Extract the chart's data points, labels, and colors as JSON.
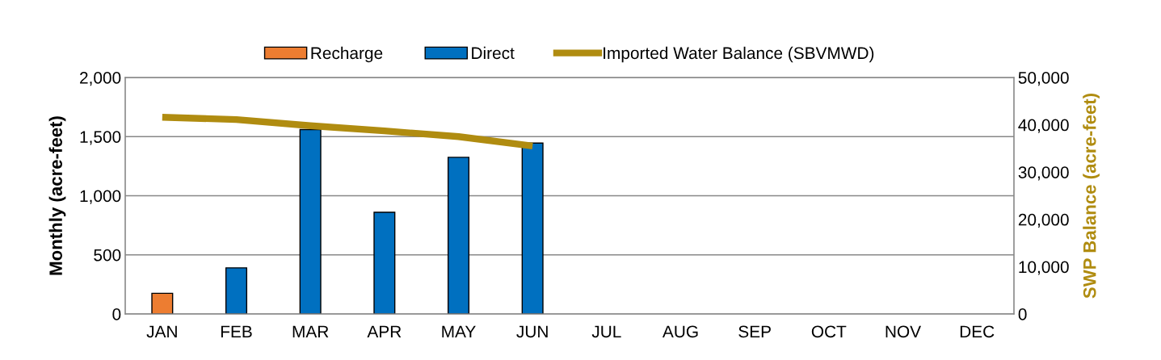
{
  "chart_data": {
    "type": "bar",
    "stacked": true,
    "ylabel": "Monthly (acre-feet)",
    "y2label": "SWP Balance (acre-feet)",
    "categories": [
      "JAN",
      "FEB",
      "MAR",
      "APR",
      "MAY",
      "JUN",
      "JUL",
      "AUG",
      "SEP",
      "OCT",
      "NOV",
      "DEC"
    ],
    "series": [
      {
        "name": "Recharge",
        "color": "#ed7d31",
        "values": [
          175,
          null,
          null,
          null,
          null,
          null,
          null,
          null,
          null,
          null,
          null,
          null
        ]
      },
      {
        "name": "Direct",
        "color": "#0070c0",
        "values": [
          null,
          390,
          1560,
          860,
          1325,
          1445,
          null,
          null,
          null,
          null,
          null,
          null
        ]
      },
      {
        "name": "Imported Water Balance (SBVMWD)",
        "type": "line",
        "axis": "y2",
        "color": "#b08c10",
        "values": [
          41600,
          41100,
          39800,
          38700,
          37500,
          35500,
          null,
          null,
          null,
          null,
          null,
          null
        ]
      }
    ],
    "ylim": [
      0,
      2000
    ],
    "yticks": [
      {
        "value": 0,
        "label": "0"
      },
      {
        "value": 500,
        "label": "500"
      },
      {
        "value": 1000,
        "label": "1,000"
      },
      {
        "value": 1500,
        "label": "1,500"
      },
      {
        "value": 2000,
        "label": "2,000"
      }
    ],
    "y2lim": [
      0,
      50000
    ],
    "y2ticks": [
      {
        "value": 0,
        "label": "0"
      },
      {
        "value": 10000,
        "label": "10,000"
      },
      {
        "value": 20000,
        "label": "20,000"
      },
      {
        "value": 30000,
        "label": "30,000"
      },
      {
        "value": 40000,
        "label": "40,000"
      },
      {
        "value": 50000,
        "label": "50,000"
      }
    ],
    "grid": "y",
    "legend": "top"
  }
}
